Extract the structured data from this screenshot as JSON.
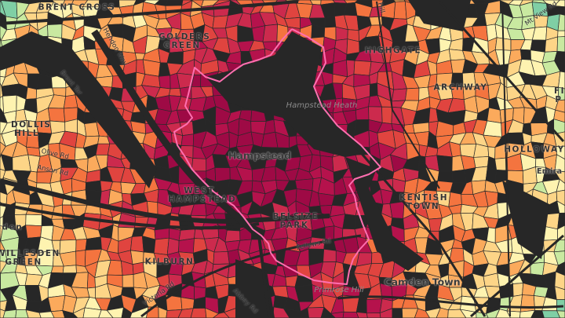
{
  "map": {
    "palette": [
      "#9e0a45",
      "#b5124c",
      "#cc2a4d",
      "#e0443f",
      "#f4743f",
      "#fbaa5c",
      "#fdd587",
      "#fef3b0",
      "#c9e9a0",
      "#7fcfa5",
      "#3aa9b4",
      "#1d8fc4"
    ],
    "background_color": "#272727",
    "boundary_color": "#ff6fb0",
    "places": [
      "BRENT CROSS",
      "GOLDERS GREEN",
      "DOLLIS HILL",
      "WEST HAMPSTEAD",
      "WILLESDEN GREEN",
      "sden",
      "KILBURN",
      "HIGHGATE",
      "ARCHWAY",
      "HOLLOWAY",
      "KENTISH TOWN",
      "BELSIZE PARK",
      "FIN P"
    ],
    "towns": [
      "Hampstead",
      "Camden Town",
      "Emira"
    ],
    "parks": [
      "Hampstead Heath",
      "Primrose Hill"
    ],
    "roads": [
      "Olive Rd",
      "Anson Rd",
      "Fellows Rd",
      "Victoria Rd",
      "Abbey Rd",
      "Hendon Way",
      "Brent Ter",
      "Mt View Rd",
      "Hill"
    ]
  }
}
